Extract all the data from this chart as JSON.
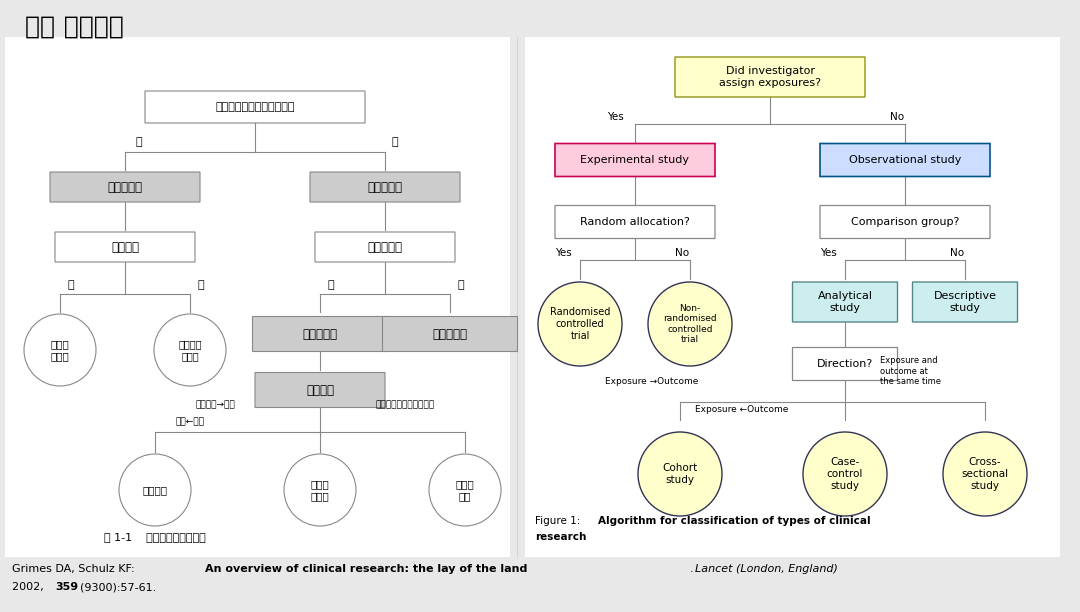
{
  "bg_color": "#e8e8e8",
  "panel_bg": "#f5f5f5",
  "title": "一、 临床研究",
  "title_color": "#000000",
  "citation": "Grimes DA, Schulz KF: An overview of clinical research: the lay of the land. Lancet (London, England)\n2002, 359(9300):57-61.",
  "fig_caption_left": "图 1-1    临床研究分类的法则",
  "fig_caption_right": "Figure 1: Algorithm for classification of types of clinical\nresearch"
}
